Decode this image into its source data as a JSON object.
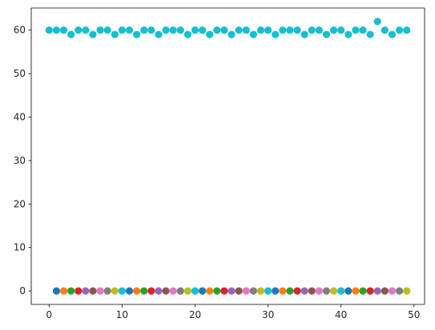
{
  "chart_data": {
    "type": "scatter",
    "title": "",
    "xlabel": "",
    "ylabel": "",
    "xlim": [
      -2.45,
      51.45
    ],
    "ylim": [
      -3.1,
      65.1
    ],
    "grid": false,
    "x_ticks": [
      0,
      10,
      20,
      30,
      40,
      50
    ],
    "y_ticks": [
      0,
      10,
      20,
      30,
      40,
      50,
      60
    ],
    "palette": [
      "#1f77b4",
      "#ff7f0e",
      "#2ca02c",
      "#d62728",
      "#9467bd",
      "#8c564b",
      "#e377c2",
      "#7f7f7f",
      "#bcbd22",
      "#17becf"
    ],
    "top_series": {
      "color": "#17becf",
      "x": [
        0,
        1,
        2,
        3,
        4,
        5,
        6,
        7,
        8,
        9,
        10,
        11,
        12,
        13,
        14,
        15,
        16,
        17,
        18,
        19,
        20,
        21,
        22,
        23,
        24,
        25,
        26,
        27,
        28,
        29,
        30,
        31,
        32,
        33,
        34,
        35,
        36,
        37,
        38,
        39,
        40,
        41,
        42,
        43,
        44,
        45,
        46,
        47,
        48,
        49
      ],
      "y": [
        60,
        60,
        60,
        59,
        60,
        60,
        59,
        60,
        60,
        59,
        60,
        60,
        59,
        60,
        60,
        59,
        60,
        60,
        60,
        59,
        60,
        60,
        59,
        60,
        60,
        59,
        60,
        60,
        59,
        60,
        60,
        59,
        60,
        60,
        60,
        59,
        60,
        60,
        59,
        60,
        60,
        59,
        60,
        60,
        59,
        62,
        60,
        59,
        60,
        60
      ]
    },
    "bottom_series": {
      "x": [
        1,
        2,
        3,
        4,
        5,
        6,
        7,
        8,
        9,
        10,
        11,
        12,
        13,
        14,
        15,
        16,
        17,
        18,
        19,
        20,
        21,
        22,
        23,
        24,
        25,
        26,
        27,
        28,
        29,
        30,
        31,
        32,
        33,
        34,
        35,
        36,
        37,
        38,
        39,
        40,
        41,
        42,
        43,
        44,
        45,
        46,
        47,
        48,
        49
      ],
      "y": [
        0,
        0,
        0,
        0,
        0,
        0,
        0,
        0,
        0,
        0,
        0,
        0,
        0,
        0,
        0,
        0,
        0,
        0,
        0,
        0,
        0,
        0,
        0,
        0,
        0,
        0,
        0,
        0,
        0,
        0,
        0,
        0,
        0,
        0,
        0,
        0,
        0,
        0,
        0,
        0,
        0,
        0,
        0,
        0,
        0,
        0,
        0,
        0,
        0
      ]
    }
  }
}
